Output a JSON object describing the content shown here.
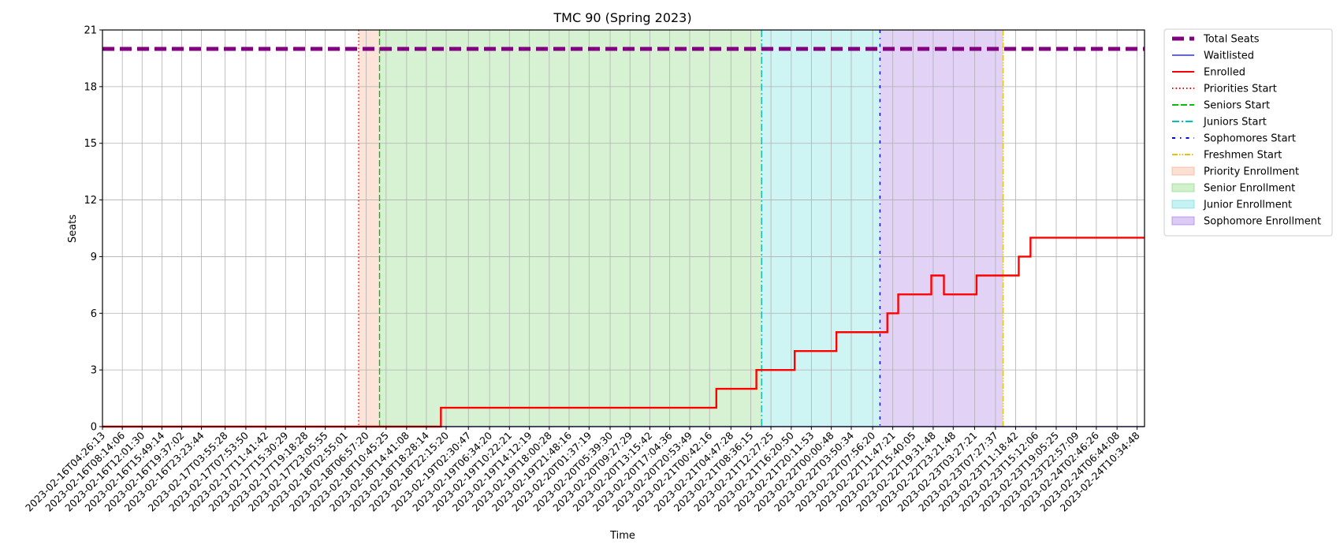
{
  "chart_data": {
    "type": "line",
    "title": "TMC 90 (Spring 2023)",
    "xlabel": "Time",
    "ylabel": "Seats",
    "ylim": [
      0,
      21
    ],
    "yticks": [
      0,
      3,
      6,
      9,
      12,
      15,
      18,
      21
    ],
    "grid": true,
    "legend_position": "outside-right",
    "x_start": "2023-02-16T04:26:13",
    "x_end": "2023-02-24T12:00:00",
    "xticks": [
      "2023-02-16T04:26:13",
      "2023-02-16T08:14:06",
      "2023-02-16T12:01:30",
      "2023-02-16T15:49:14",
      "2023-02-16T19:37:02",
      "2023-02-16T23:23:44",
      "2023-02-17T03:55:28",
      "2023-02-17T07:53:50",
      "2023-02-17T11:41:42",
      "2023-02-17T15:30:29",
      "2023-02-17T19:18:28",
      "2023-02-17T23:05:55",
      "2023-02-18T02:55:01",
      "2023-02-18T06:57:20",
      "2023-02-18T10:45:25",
      "2023-02-18T14:41:08",
      "2023-02-18T18:28:14",
      "2023-02-18T22:15:20",
      "2023-02-19T02:30:47",
      "2023-02-19T06:34:20",
      "2023-02-19T10:22:21",
      "2023-02-19T14:12:19",
      "2023-02-19T18:00:28",
      "2023-02-19T21:48:16",
      "2023-02-20T01:37:19",
      "2023-02-20T05:39:30",
      "2023-02-20T09:27:29",
      "2023-02-20T13:15:42",
      "2023-02-20T17:04:36",
      "2023-02-20T20:53:49",
      "2023-02-21T00:42:16",
      "2023-02-21T04:47:28",
      "2023-02-21T08:36:15",
      "2023-02-21T12:27:25",
      "2023-02-21T16:20:50",
      "2023-02-21T20:11:53",
      "2023-02-22T00:00:48",
      "2023-02-22T03:50:34",
      "2023-02-22T07:56:20",
      "2023-02-22T11:47:21",
      "2023-02-22T15:40:05",
      "2023-02-22T19:31:48",
      "2023-02-22T23:21:48",
      "2023-02-23T03:27:21",
      "2023-02-23T07:27:37",
      "2023-02-23T11:18:42",
      "2023-02-23T15:12:06",
      "2023-02-23T19:05:25",
      "2023-02-23T22:57:09",
      "2023-02-24T02:46:26",
      "2023-02-24T06:44:08",
      "2023-02-24T10:34:48"
    ],
    "series": [
      {
        "name": "Total Seats",
        "color": "#800080",
        "style": "dashed",
        "points": [
          [
            "2023-02-16T04:26:13",
            20
          ],
          [
            "2023-02-24T12:00:00",
            20
          ]
        ]
      },
      {
        "name": "Waitlisted",
        "color": "#0000ff",
        "style": "solid",
        "points": [
          [
            "2023-02-16T04:26:13",
            0
          ],
          [
            "2023-02-24T12:00:00",
            0
          ]
        ]
      },
      {
        "name": "Enrolled",
        "color": "#ff0000",
        "style": "step",
        "points": [
          [
            "2023-02-16T04:26:13",
            0
          ],
          [
            "2023-02-18T21:15:00",
            1
          ],
          [
            "2023-02-21T02:00:00",
            2
          ],
          [
            "2023-02-21T09:40:00",
            3
          ],
          [
            "2023-02-21T17:00:00",
            4
          ],
          [
            "2023-02-22T01:00:00",
            5
          ],
          [
            "2023-02-22T10:45:00",
            6
          ],
          [
            "2023-02-22T12:50:00",
            7
          ],
          [
            "2023-02-22T19:10:00",
            8
          ],
          [
            "2023-02-22T21:35:00",
            7
          ],
          [
            "2023-02-23T03:50:00",
            8
          ],
          [
            "2023-02-23T11:55:00",
            9
          ],
          [
            "2023-02-23T14:10:00",
            10
          ],
          [
            "2023-02-24T12:00:00",
            10
          ]
        ]
      }
    ],
    "vlines": [
      {
        "name": "Priorities Start",
        "color": "#ff0000",
        "style": "dotted",
        "x": "2023-02-18T05:30:00"
      },
      {
        "name": "Seniors Start",
        "color": "#00c000",
        "style": "dashed",
        "x": "2023-02-18T09:30:00"
      },
      {
        "name": "Juniors Start",
        "color": "#00bfbf",
        "style": "dashdot",
        "x": "2023-02-21T10:40:00"
      },
      {
        "name": "Sophomores Start",
        "color": "#0000ff",
        "style": "loosedashdot",
        "x": "2023-02-22T09:20:00"
      },
      {
        "name": "Freshmen Start",
        "color": "#e6c200",
        "style": "dashdotdot",
        "x": "2023-02-23T08:55:00"
      }
    ],
    "spans": [
      {
        "name": "Priority Enrollment",
        "color": "#f4a582",
        "opacity": 0.3,
        "from": "2023-02-18T05:30:00",
        "to": "2023-02-18T09:30:00"
      },
      {
        "name": "Senior Enrollment",
        "color": "#7bd36e",
        "opacity": 0.3,
        "from": "2023-02-18T09:30:00",
        "to": "2023-02-21T10:40:00"
      },
      {
        "name": "Junior Enrollment",
        "color": "#5fd9dc",
        "opacity": 0.3,
        "from": "2023-02-21T10:40:00",
        "to": "2023-02-22T09:20:00"
      },
      {
        "name": "Sophomore Enrollment",
        "color": "#9b6ae0",
        "opacity": 0.3,
        "from": "2023-02-22T09:20:00",
        "to": "2023-02-23T08:55:00"
      }
    ],
    "legend": [
      {
        "label": "Total Seats",
        "kind": "line",
        "color": "#800080",
        "style": "dashed-thick"
      },
      {
        "label": "Waitlisted",
        "kind": "line",
        "color": "#0000ff",
        "style": "solid-thin"
      },
      {
        "label": "Enrolled",
        "kind": "line",
        "color": "#ff0000",
        "style": "solid"
      },
      {
        "label": "Priorities Start",
        "kind": "line",
        "color": "#ff0000",
        "style": "dotted"
      },
      {
        "label": "Seniors Start",
        "kind": "line",
        "color": "#00c000",
        "style": "dashed"
      },
      {
        "label": "Juniors Start",
        "kind": "line",
        "color": "#00bfbf",
        "style": "dashdot"
      },
      {
        "label": "Sophomores Start",
        "kind": "line",
        "color": "#0000ff",
        "style": "loosedashdot"
      },
      {
        "label": "Freshmen Start",
        "kind": "line",
        "color": "#e6c200",
        "style": "dashdotdot"
      },
      {
        "label": "Priority Enrollment",
        "kind": "patch",
        "color": "#f4a582"
      },
      {
        "label": "Senior Enrollment",
        "kind": "patch",
        "color": "#7bd36e"
      },
      {
        "label": "Junior Enrollment",
        "kind": "patch",
        "color": "#5fd9dc"
      },
      {
        "label": "Sophomore Enrollment",
        "kind": "patch",
        "color": "#9b6ae0"
      }
    ]
  }
}
